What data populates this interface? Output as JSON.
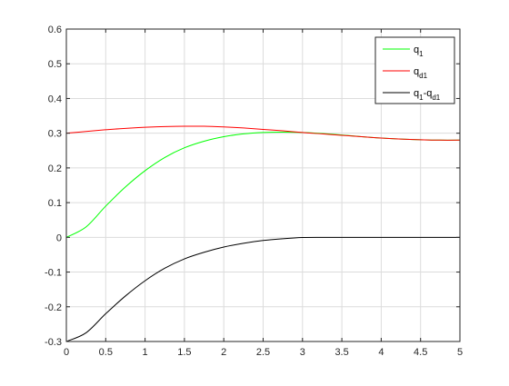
{
  "chart_data": {
    "type": "line",
    "title": "",
    "xlabel": "",
    "ylabel": "",
    "xlim": [
      0,
      5
    ],
    "ylim": [
      -0.3,
      0.6
    ],
    "grid": true,
    "legend_position": "top-right",
    "x_ticks": [
      "0",
      "0.5",
      "1",
      "1.5",
      "2",
      "2.5",
      "3",
      "3.5",
      "4",
      "4.5",
      "5"
    ],
    "y_ticks": [
      "-0.3",
      "-0.2",
      "-0.1",
      "0",
      "0.1",
      "0.2",
      "0.3",
      "0.4",
      "0.5",
      "0.6"
    ],
    "x": [
      0,
      0.25,
      0.5,
      0.75,
      1.0,
      1.25,
      1.5,
      1.75,
      2.0,
      2.25,
      2.5,
      2.75,
      3.0,
      3.25,
      3.5,
      3.75,
      4.0,
      4.25,
      4.5,
      4.75,
      5.0
    ],
    "series": [
      {
        "name": "q1",
        "legend": {
          "base": "q",
          "sub": "1",
          "tail": "",
          "tail_sub": ""
        },
        "color": "#00ff00",
        "values": [
          0.0,
          0.03,
          0.09,
          0.145,
          0.192,
          0.23,
          0.258,
          0.277,
          0.29,
          0.298,
          0.302,
          0.303,
          0.302,
          0.299,
          0.295,
          0.29,
          0.286,
          0.283,
          0.281,
          0.28,
          0.28
        ]
      },
      {
        "name": "qd1",
        "legend": {
          "base": "q",
          "sub": "d1",
          "tail": "",
          "tail_sub": ""
        },
        "color": "#ff0000",
        "values": [
          0.3,
          0.305,
          0.31,
          0.314,
          0.317,
          0.319,
          0.32,
          0.32,
          0.318,
          0.315,
          0.311,
          0.307,
          0.302,
          0.298,
          0.294,
          0.29,
          0.286,
          0.283,
          0.281,
          0.28,
          0.28
        ]
      },
      {
        "name": "q1-qd1",
        "legend": {
          "base": "q",
          "sub": "1",
          "tail": "-q",
          "tail_sub": "d1"
        },
        "color": "#000000",
        "values": [
          -0.3,
          -0.275,
          -0.22,
          -0.169,
          -0.125,
          -0.089,
          -0.062,
          -0.043,
          -0.028,
          -0.017,
          -0.009,
          -0.004,
          -0.0005,
          0.0,
          0.0,
          0.0,
          0.0,
          0.0,
          0.0,
          0.0,
          0.0
        ]
      }
    ]
  }
}
